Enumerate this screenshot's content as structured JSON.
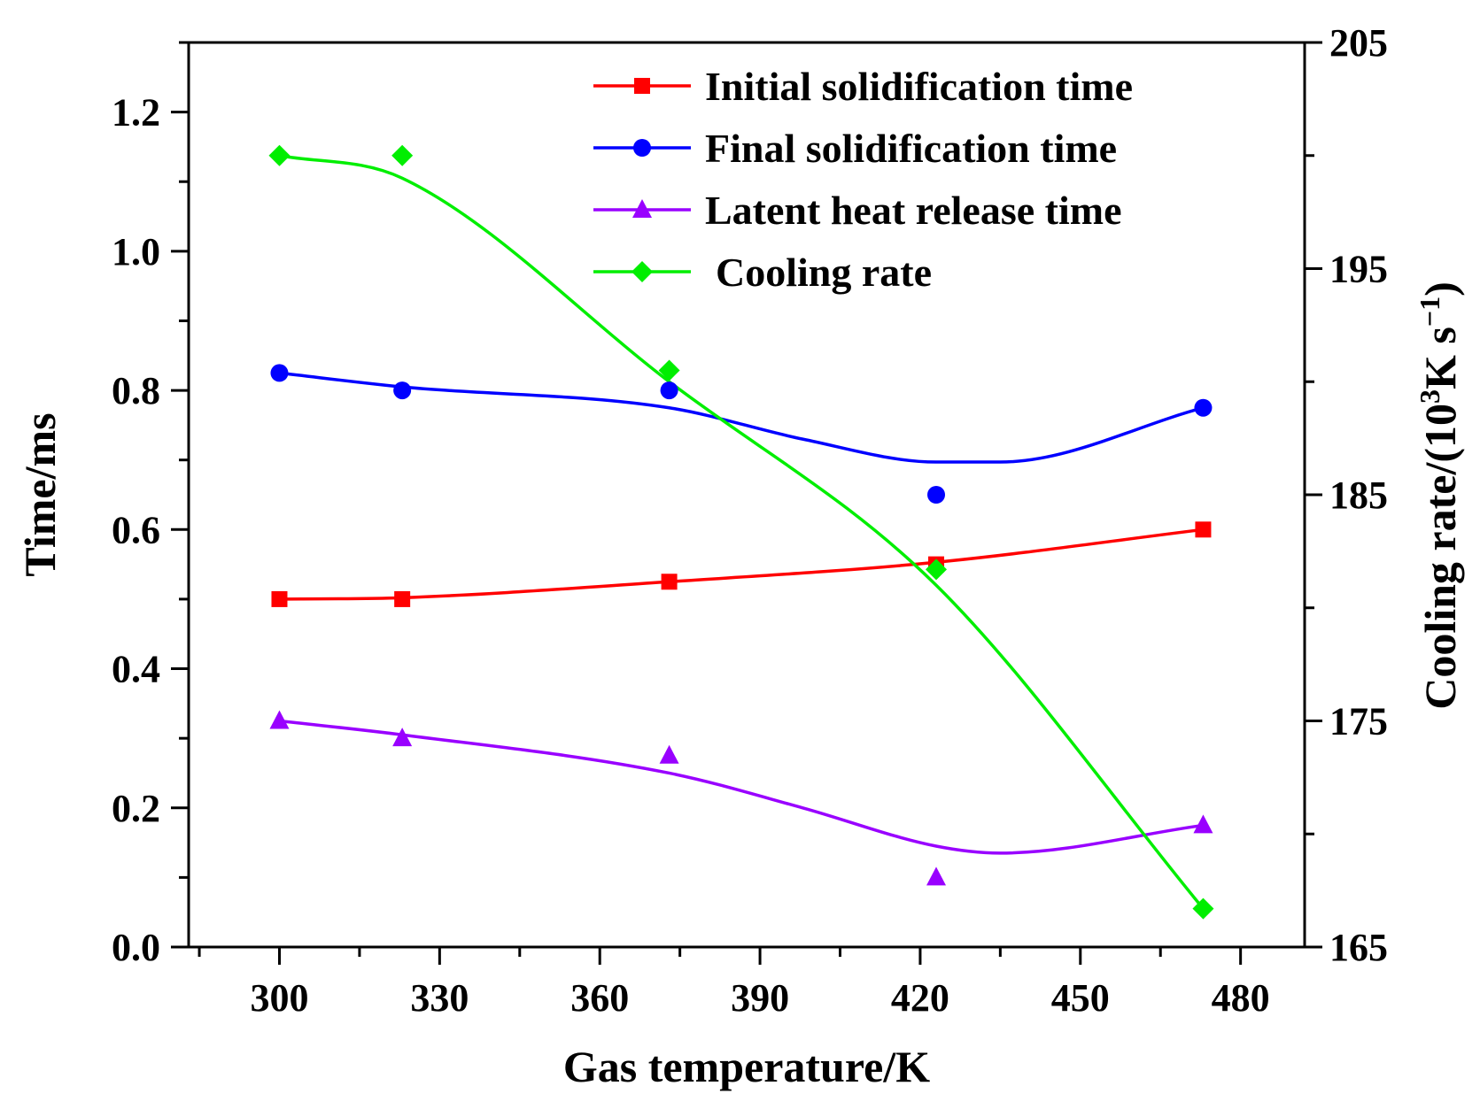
{
  "chart_data": {
    "type": "line",
    "xlabel": "Gas temperature/K",
    "ylabel": "Time/ms",
    "y2label": {
      "main": "Cooling rate/(10",
      "sup1": "3",
      "mid": "K s",
      "sup2": "−1",
      "end": ")"
    },
    "xlim": [
      283,
      492
    ],
    "ylim": [
      0,
      1.3
    ],
    "y2lim": [
      165,
      205
    ],
    "xticks": [
      300,
      330,
      360,
      390,
      420,
      450,
      480
    ],
    "yticks": [
      0.0,
      0.2,
      0.4,
      0.6,
      0.8,
      1.0,
      1.2
    ],
    "y2ticks": [
      165,
      175,
      185,
      195,
      205
    ],
    "x": [
      300,
      323,
      373,
      423,
      473
    ],
    "series": [
      {
        "name": "Initial solidification time",
        "axis": "left",
        "color": "#ff0000",
        "marker": "square",
        "values": [
          0.5,
          0.5,
          0.525,
          0.55,
          0.6
        ]
      },
      {
        "name": "Final solidification time",
        "axis": "left",
        "color": "#0000ff",
        "marker": "circle",
        "values": [
          0.825,
          0.8,
          0.8,
          0.65,
          0.775
        ]
      },
      {
        "name": "Latent heat release time",
        "axis": "left",
        "color": "#9900ff",
        "marker": "triangle",
        "values": [
          0.325,
          0.3,
          0.275,
          0.1,
          0.175
        ]
      },
      {
        "name": "Cooling rate",
        "axis": "right",
        "color": "#00ee00",
        "marker": "diamond",
        "values": [
          200.0,
          200.0,
          190.5,
          181.7,
          166.7
        ]
      }
    ],
    "fits": [
      {
        "series": "Initial solidification time",
        "x": [
          300,
          323,
          373,
          423,
          473
        ],
        "values": [
          0.5,
          0.502,
          0.525,
          0.553,
          0.6
        ]
      },
      {
        "series": "Final solidification time",
        "x": [
          300,
          323,
          373,
          398,
          423,
          435,
          473
        ],
        "values": [
          0.825,
          0.805,
          0.775,
          0.73,
          0.697,
          0.697,
          0.775
        ]
      },
      {
        "series": "Latent heat release time",
        "x": [
          300,
          323,
          373,
          398,
          423,
          435,
          473
        ],
        "values": [
          0.325,
          0.305,
          0.25,
          0.2,
          0.145,
          0.135,
          0.175
        ]
      },
      {
        "series": "Cooling rate",
        "x": [
          300,
          323,
          373,
          423,
          473
        ],
        "values": [
          200.0,
          199.0,
          190.0,
          181.0,
          166.7
        ]
      }
    ],
    "legend_position": "top-right"
  }
}
